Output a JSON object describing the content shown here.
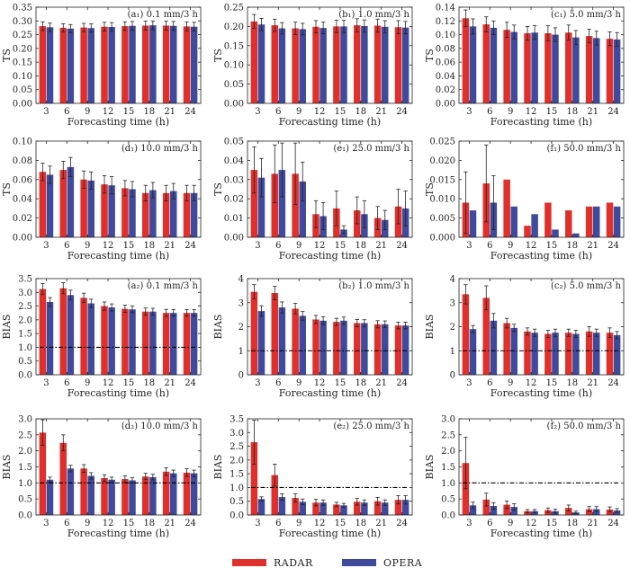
{
  "legend": {
    "series_names": [
      "RADAR",
      "OPERA"
    ],
    "colors": [
      "#e0302c",
      "#3f4a9c"
    ]
  },
  "chart_data": [
    {
      "type": "bar",
      "id": "a1",
      "title": "(a₁) 0.1 mm/3 h",
      "xlabel": "Forecasting time (h)",
      "ylabel": "TS",
      "categories": [
        "3",
        "6",
        "9",
        "12",
        "15",
        "18",
        "21",
        "24"
      ],
      "ylim": [
        0,
        0.35
      ],
      "yticks": [
        0,
        0.05,
        0.1,
        0.15,
        0.2,
        0.25,
        0.3,
        0.35
      ],
      "ydec": 2,
      "series": [
        {
          "name": "RADAR",
          "values": [
            0.281,
            0.275,
            0.276,
            0.279,
            0.281,
            0.283,
            0.283,
            0.28
          ],
          "err": [
            0.016,
            0.015,
            0.015,
            0.016,
            0.016,
            0.016,
            0.016,
            0.016
          ]
        },
        {
          "name": "OPERA",
          "values": [
            0.277,
            0.272,
            0.274,
            0.278,
            0.282,
            0.284,
            0.282,
            0.279
          ],
          "err": [
            0.015,
            0.015,
            0.015,
            0.016,
            0.016,
            0.016,
            0.016,
            0.016
          ]
        }
      ]
    },
    {
      "type": "bar",
      "id": "b1",
      "title": "(b₁) 1.0 mm/3 h",
      "xlabel": "Forecasting time (h)",
      "ylabel": "TS",
      "categories": [
        "3",
        "6",
        "9",
        "12",
        "15",
        "18",
        "21",
        "24"
      ],
      "ylim": [
        0,
        0.25
      ],
      "yticks": [
        0,
        0.05,
        0.1,
        0.15,
        0.2,
        0.25
      ],
      "ydec": 2,
      "series": [
        {
          "name": "RADAR",
          "values": [
            0.213,
            0.203,
            0.195,
            0.199,
            0.2,
            0.203,
            0.202,
            0.198
          ],
          "err": [
            0.018,
            0.016,
            0.016,
            0.016,
            0.016,
            0.017,
            0.017,
            0.017
          ]
        },
        {
          "name": "OPERA",
          "values": [
            0.205,
            0.195,
            0.193,
            0.196,
            0.2,
            0.201,
            0.199,
            0.197
          ],
          "err": [
            0.016,
            0.015,
            0.015,
            0.015,
            0.016,
            0.016,
            0.016,
            0.016
          ]
        }
      ]
    },
    {
      "type": "bar",
      "id": "c1",
      "title": "(c₁) 5.0 mm/3 h",
      "xlabel": "Forecasting time (h)",
      "ylabel": "TS",
      "categories": [
        "3",
        "6",
        "9",
        "12",
        "15",
        "18",
        "21",
        "24"
      ],
      "ylim": [
        0,
        0.14
      ],
      "yticks": [
        0,
        0.02,
        0.04,
        0.06,
        0.08,
        0.1,
        0.12,
        0.14
      ],
      "ydec": 2,
      "series": [
        {
          "name": "RADAR",
          "values": [
            0.124,
            0.115,
            0.107,
            0.102,
            0.102,
            0.103,
            0.098,
            0.094
          ],
          "err": [
            0.012,
            0.011,
            0.011,
            0.01,
            0.011,
            0.011,
            0.01,
            0.01
          ]
        },
        {
          "name": "OPERA",
          "values": [
            0.112,
            0.11,
            0.104,
            0.103,
            0.1,
            0.096,
            0.095,
            0.093
          ],
          "err": [
            0.011,
            0.01,
            0.01,
            0.01,
            0.01,
            0.01,
            0.01,
            0.01
          ]
        }
      ]
    },
    {
      "type": "bar",
      "id": "d1",
      "title": "(d₁) 10.0 mm/3 h",
      "xlabel": "Forecasting time (h)",
      "ylabel": "TS",
      "categories": [
        "3",
        "6",
        "9",
        "12",
        "15",
        "18",
        "21",
        "24"
      ],
      "ylim": [
        0,
        0.1
      ],
      "yticks": [
        0,
        0.02,
        0.04,
        0.06,
        0.08,
        0.1
      ],
      "ydec": 2,
      "series": [
        {
          "name": "RADAR",
          "values": [
            0.068,
            0.07,
            0.06,
            0.055,
            0.051,
            0.046,
            0.046,
            0.046
          ],
          "err": [
            0.009,
            0.009,
            0.009,
            0.009,
            0.008,
            0.008,
            0.008,
            0.008
          ]
        },
        {
          "name": "OPERA",
          "values": [
            0.065,
            0.073,
            0.059,
            0.054,
            0.05,
            0.049,
            0.048,
            0.046
          ],
          "err": [
            0.009,
            0.01,
            0.009,
            0.009,
            0.008,
            0.008,
            0.008,
            0.008
          ]
        }
      ]
    },
    {
      "type": "bar",
      "id": "e1",
      "title": "(e₁) 25.0 mm/3 h",
      "xlabel": "Forecasting time (h)",
      "ylabel": "TS",
      "categories": [
        "3",
        "6",
        "9",
        "12",
        "15",
        "18",
        "21",
        "24"
      ],
      "ylim": [
        0,
        0.05
      ],
      "yticks": [
        0,
        0.01,
        0.02,
        0.03,
        0.04,
        0.05
      ],
      "ydec": 2,
      "series": [
        {
          "name": "RADAR",
          "values": [
            0.035,
            0.033,
            0.033,
            0.012,
            0.015,
            0.014,
            0.01,
            0.016
          ],
          "err": [
            0.012,
            0.015,
            0.016,
            0.007,
            0.009,
            0.007,
            0.006,
            0.009
          ]
        },
        {
          "name": "OPERA",
          "values": [
            0.031,
            0.035,
            0.029,
            0.011,
            0.004,
            0.012,
            0.009,
            0.015
          ],
          "err": [
            0.01,
            0.014,
            0.01,
            0.007,
            0.002,
            0.007,
            0.005,
            0.009
          ]
        }
      ]
    },
    {
      "type": "bar",
      "id": "f1",
      "title": "(f₁) 50.0 mm/3 h",
      "xlabel": "Forecasting time (h)",
      "ylabel": "TS",
      "categories": [
        "3",
        "6",
        "9",
        "12",
        "15",
        "18",
        "21",
        "24"
      ],
      "ylim": [
        0,
        0.025
      ],
      "yticks": [
        0,
        0.005,
        0.01,
        0.015,
        0.02,
        0.025
      ],
      "ydec": 3,
      "series": [
        {
          "name": "RADAR",
          "values": [
            0.009,
            0.014,
            0.015,
            0.003,
            0.009,
            0.007,
            0.008,
            0.009
          ],
          "err": [
            0.008,
            0.01,
            0.0,
            0.0,
            0.0,
            0.0,
            0.0,
            0.0
          ]
        },
        {
          "name": "OPERA",
          "values": [
            0.007,
            0.009,
            0.008,
            0.006,
            0.002,
            0.001,
            0.008,
            0.008
          ],
          "err": [
            0.0,
            0.007,
            0.0,
            0.0,
            0.0,
            0.0,
            0.0,
            0.0
          ]
        }
      ]
    },
    {
      "type": "bar",
      "id": "a2",
      "title": "(a₂) 0.1 mm/3 h",
      "xlabel": "Forecasting time (h)",
      "ylabel": "BIAS",
      "categories": [
        "3",
        "6",
        "9",
        "12",
        "15",
        "18",
        "21",
        "24"
      ],
      "ylim": [
        0,
        3.5
      ],
      "yticks": [
        0,
        0.5,
        1.0,
        1.5,
        2.0,
        2.5,
        3.0,
        3.5
      ],
      "ydec": 1,
      "refline": 1.0,
      "series": [
        {
          "name": "RADAR",
          "values": [
            3.12,
            3.15,
            2.8,
            2.5,
            2.4,
            2.3,
            2.25,
            2.25
          ],
          "err": [
            0.2,
            0.2,
            0.17,
            0.15,
            0.13,
            0.13,
            0.13,
            0.12
          ]
        },
        {
          "name": "OPERA",
          "values": [
            2.65,
            2.9,
            2.6,
            2.45,
            2.38,
            2.3,
            2.25,
            2.25
          ],
          "err": [
            0.16,
            0.18,
            0.15,
            0.13,
            0.12,
            0.12,
            0.12,
            0.12
          ]
        }
      ]
    },
    {
      "type": "bar",
      "id": "b2",
      "title": "(b₂) 1.0 mm/3 h",
      "xlabel": "Forecasting time (h)",
      "ylabel": "BIAS",
      "categories": [
        "3",
        "6",
        "9",
        "12",
        "15",
        "18",
        "21",
        "24"
      ],
      "ylim": [
        0,
        4
      ],
      "yticks": [
        0,
        1,
        2,
        3,
        4
      ],
      "ydec": 0,
      "refline": 1.0,
      "series": [
        {
          "name": "RADAR",
          "values": [
            3.45,
            3.4,
            2.75,
            2.3,
            2.2,
            2.15,
            2.1,
            2.05
          ],
          "err": [
            0.3,
            0.28,
            0.22,
            0.17,
            0.15,
            0.15,
            0.15,
            0.14
          ]
        },
        {
          "name": "OPERA",
          "values": [
            2.65,
            2.8,
            2.45,
            2.25,
            2.25,
            2.15,
            2.1,
            2.05
          ],
          "err": [
            0.22,
            0.23,
            0.18,
            0.16,
            0.15,
            0.14,
            0.14,
            0.14
          ]
        }
      ]
    },
    {
      "type": "bar",
      "id": "c2",
      "title": "(c₂) 5.0 mm/3 h",
      "xlabel": "Forecasting time (h)",
      "ylabel": "BIAS",
      "categories": [
        "3",
        "6",
        "9",
        "12",
        "15",
        "18",
        "21",
        "24"
      ],
      "ylim": [
        0,
        4
      ],
      "yticks": [
        0,
        1,
        2,
        3,
        4
      ],
      "ydec": 0,
      "refline": 1.0,
      "series": [
        {
          "name": "RADAR",
          "values": [
            3.35,
            3.2,
            2.15,
            1.8,
            1.7,
            1.75,
            1.8,
            1.75
          ],
          "err": [
            0.4,
            0.5,
            0.2,
            0.15,
            0.15,
            0.15,
            0.2,
            0.2
          ]
        },
        {
          "name": "OPERA",
          "values": [
            1.9,
            2.25,
            1.95,
            1.75,
            1.75,
            1.7,
            1.75,
            1.65
          ],
          "err": [
            0.15,
            0.3,
            0.15,
            0.15,
            0.15,
            0.15,
            0.15,
            0.15
          ]
        }
      ]
    },
    {
      "type": "bar",
      "id": "d2",
      "title": "(d₂) 10.0 mm/3 h",
      "xlabel": "Forecasting time (h)",
      "ylabel": "BIAS",
      "categories": [
        "3",
        "6",
        "9",
        "12",
        "15",
        "18",
        "21",
        "24"
      ],
      "ylim": [
        0,
        3.0
      ],
      "yticks": [
        0,
        0.5,
        1.0,
        1.5,
        2.0,
        2.5,
        3.0
      ],
      "ydec": 1,
      "refline": 1.0,
      "series": [
        {
          "name": "RADAR",
          "values": [
            2.57,
            2.25,
            1.45,
            1.15,
            1.12,
            1.2,
            1.35,
            1.32
          ],
          "err": [
            0.4,
            0.25,
            0.12,
            0.1,
            0.1,
            0.1,
            0.12,
            0.12
          ]
        },
        {
          "name": "OPERA",
          "values": [
            1.1,
            1.45,
            1.22,
            1.1,
            1.08,
            1.18,
            1.3,
            1.3
          ],
          "err": [
            0.08,
            0.1,
            0.1,
            0.08,
            0.08,
            0.09,
            0.1,
            0.1
          ]
        }
      ]
    },
    {
      "type": "bar",
      "id": "e2",
      "title": "(e₂) 25.0 mm/3 h",
      "xlabel": "Forecasting time (h)",
      "ylabel": "BIAS",
      "categories": [
        "3",
        "6",
        "9",
        "12",
        "15",
        "18",
        "21",
        "24"
      ],
      "ylim": [
        0,
        3.5
      ],
      "yticks": [
        0,
        0.5,
        1.0,
        1.5,
        2.0,
        2.5,
        3.0,
        3.5
      ],
      "ydec": 1,
      "refline": 1.0,
      "series": [
        {
          "name": "RADAR",
          "values": [
            2.65,
            1.45,
            0.62,
            0.45,
            0.38,
            0.48,
            0.5,
            0.55
          ],
          "err": [
            0.8,
            0.4,
            0.15,
            0.12,
            0.08,
            0.12,
            0.14,
            0.15
          ]
        },
        {
          "name": "OPERA",
          "values": [
            0.58,
            0.65,
            0.48,
            0.45,
            0.35,
            0.45,
            0.45,
            0.55
          ],
          "err": [
            0.08,
            0.12,
            0.1,
            0.1,
            0.07,
            0.1,
            0.1,
            0.15
          ]
        }
      ]
    },
    {
      "type": "bar",
      "id": "f2",
      "title": "(f₂) 50.0 mm/3 h",
      "xlabel": "Forecasting time (h)",
      "ylabel": "BIAS",
      "categories": [
        "3",
        "6",
        "9",
        "12",
        "15",
        "18",
        "21",
        "24"
      ],
      "ylim": [
        0,
        3.0
      ],
      "yticks": [
        0,
        0.5,
        1.0,
        1.5,
        2.0,
        2.5,
        3.0
      ],
      "ydec": 1,
      "refline": 1.0,
      "series": [
        {
          "name": "RADAR",
          "values": [
            1.62,
            0.48,
            0.32,
            0.12,
            0.15,
            0.22,
            0.18,
            0.17
          ],
          "err": [
            0.8,
            0.2,
            0.12,
            0.05,
            0.07,
            0.09,
            0.08,
            0.08
          ]
        },
        {
          "name": "OPERA",
          "values": [
            0.3,
            0.28,
            0.25,
            0.12,
            0.12,
            0.08,
            0.18,
            0.14
          ],
          "err": [
            0.1,
            0.1,
            0.1,
            0.05,
            0.06,
            0.04,
            0.08,
            0.06
          ]
        }
      ]
    }
  ]
}
